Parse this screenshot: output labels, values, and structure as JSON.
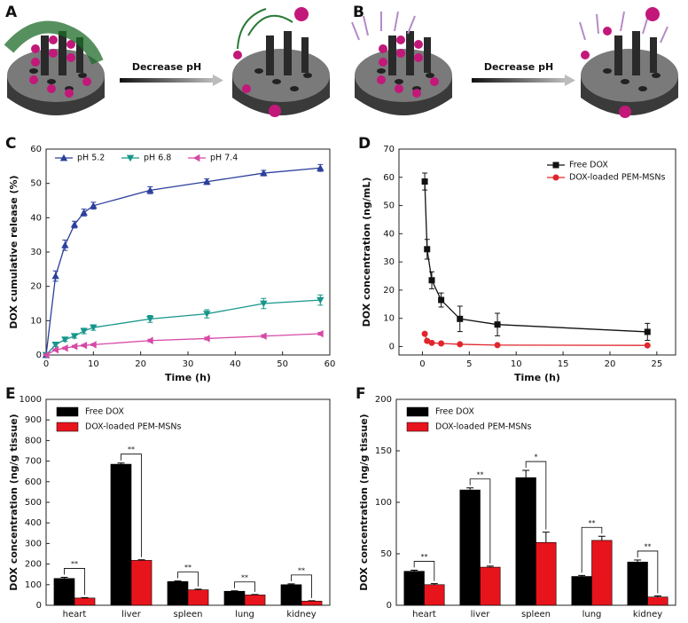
{
  "illustrations": [
    {
      "label": "A",
      "arrow_text": "Decrease pH"
    },
    {
      "label": "B",
      "arrow_text": "Decrease pH"
    }
  ],
  "chart_data": [
    {
      "type": "line",
      "panel_label": "C",
      "x_label": "Time (h)",
      "y_label": "DOX cumulative release (%)",
      "x": [
        0,
        2,
        4,
        6,
        8,
        10,
        22,
        34,
        46,
        58
      ],
      "xlim": [
        0,
        60
      ],
      "xticks": [
        0,
        10,
        20,
        30,
        40,
        50,
        60
      ],
      "ylim": [
        0,
        60
      ],
      "yticks": [
        0,
        10,
        20,
        30,
        40,
        50,
        60
      ],
      "legend": "upper left",
      "legend_columns": 3,
      "series": [
        {
          "name": "pH 5.2",
          "color": "#2b3f9c",
          "marker": "triangle-up",
          "values": [
            0,
            23,
            32,
            38,
            41.5,
            43.5,
            48,
            50.5,
            53,
            54.5
          ],
          "errors": [
            0,
            1.5,
            1.5,
            1,
            1,
            1,
            1,
            0.8,
            0.8,
            1
          ]
        },
        {
          "name": "pH 6.8",
          "color": "#16968a",
          "marker": "triangle-down",
          "values": [
            0,
            3,
            4.5,
            5.5,
            7,
            8,
            10.5,
            12,
            15,
            16
          ],
          "errors": [
            0,
            0.5,
            0.5,
            0.6,
            0.8,
            0.8,
            1,
            1.2,
            1.5,
            1.5
          ]
        },
        {
          "name": "pH 7.4",
          "color": "#d64aa6",
          "marker": "triangle-left",
          "values": [
            0,
            1.5,
            2,
            2.5,
            2.8,
            3,
            4.2,
            4.8,
            5.5,
            6.2
          ],
          "errors": [
            0,
            0.3,
            0.3,
            0.3,
            0.3,
            0.3,
            0.4,
            0.4,
            0.4,
            0.4
          ]
        }
      ]
    },
    {
      "type": "line",
      "panel_label": "D",
      "x_label": "Time (h)",
      "y_label": "DOX concentration (ng/mL)",
      "x": [
        0.25,
        0.5,
        1,
        2,
        4,
        8,
        24
      ],
      "xlim": [
        -2.5,
        27
      ],
      "xticks": [
        0,
        5,
        10,
        15,
        20,
        25
      ],
      "ylim": [
        -3,
        70
      ],
      "yticks": [
        0,
        10,
        20,
        30,
        40,
        50,
        60,
        70
      ],
      "legend": "upper right",
      "legend_columns": 1,
      "series": [
        {
          "name": "Free DOX",
          "color": "#111111",
          "marker": "square",
          "values": [
            58.5,
            34.5,
            23.5,
            16.5,
            9.8,
            7.8,
            5.2
          ],
          "errors": [
            3,
            3.5,
            3,
            2.5,
            4.5,
            4,
            3
          ]
        },
        {
          "name": "DOX-loaded PEM-MSNs",
          "color": "#e0262c",
          "marker": "circle",
          "values": [
            4.5,
            2,
            1.3,
            1.1,
            0.8,
            0.5,
            0.4
          ],
          "errors": [
            0.4,
            0.3,
            0.2,
            0.2,
            0.2,
            0.1,
            0.1
          ]
        }
      ]
    },
    {
      "type": "bar",
      "panel_label": "E",
      "y_label": "DOX concentration (ng/g tissue)",
      "categories": [
        "heart",
        "liver",
        "spleen",
        "lung",
        "kidney"
      ],
      "ylim": [
        0,
        1000
      ],
      "yticks": [
        0,
        100,
        200,
        300,
        400,
        500,
        600,
        700,
        800,
        900,
        1000
      ],
      "legend": "upper left",
      "series": [
        {
          "name": "Free DOX",
          "color": "#000000",
          "values": [
            130,
            685,
            115,
            68,
            100
          ],
          "errors": [
            6,
            6,
            3,
            2,
            4
          ]
        },
        {
          "name": "DOX-loaded PEM-MSNs",
          "color": "#e8141c",
          "values": [
            35,
            218,
            75,
            50,
            20
          ],
          "errors": [
            2,
            3,
            3,
            2,
            2
          ]
        }
      ],
      "significance": [
        "**",
        "**",
        "**",
        "**",
        "**"
      ]
    },
    {
      "type": "bar",
      "panel_label": "F",
      "y_label": "DOX concentration (ng/g tissue)",
      "categories": [
        "heart",
        "liver",
        "spleen",
        "lung",
        "kidney"
      ],
      "ylim": [
        0,
        200
      ],
      "yticks": [
        0,
        50,
        100,
        150,
        200
      ],
      "legend": "upper left",
      "series": [
        {
          "name": "Free DOX",
          "color": "#000000",
          "values": [
            33,
            112,
            124,
            28,
            42
          ],
          "errors": [
            1,
            2,
            7,
            1,
            2
          ]
        },
        {
          "name": "DOX-loaded PEM-MSNs",
          "color": "#e8141c",
          "values": [
            20,
            37,
            61,
            63,
            8
          ],
          "errors": [
            1,
            1,
            10,
            4,
            1
          ]
        }
      ],
      "significance": [
        "**",
        "**",
        "*",
        "**",
        "**"
      ]
    }
  ]
}
